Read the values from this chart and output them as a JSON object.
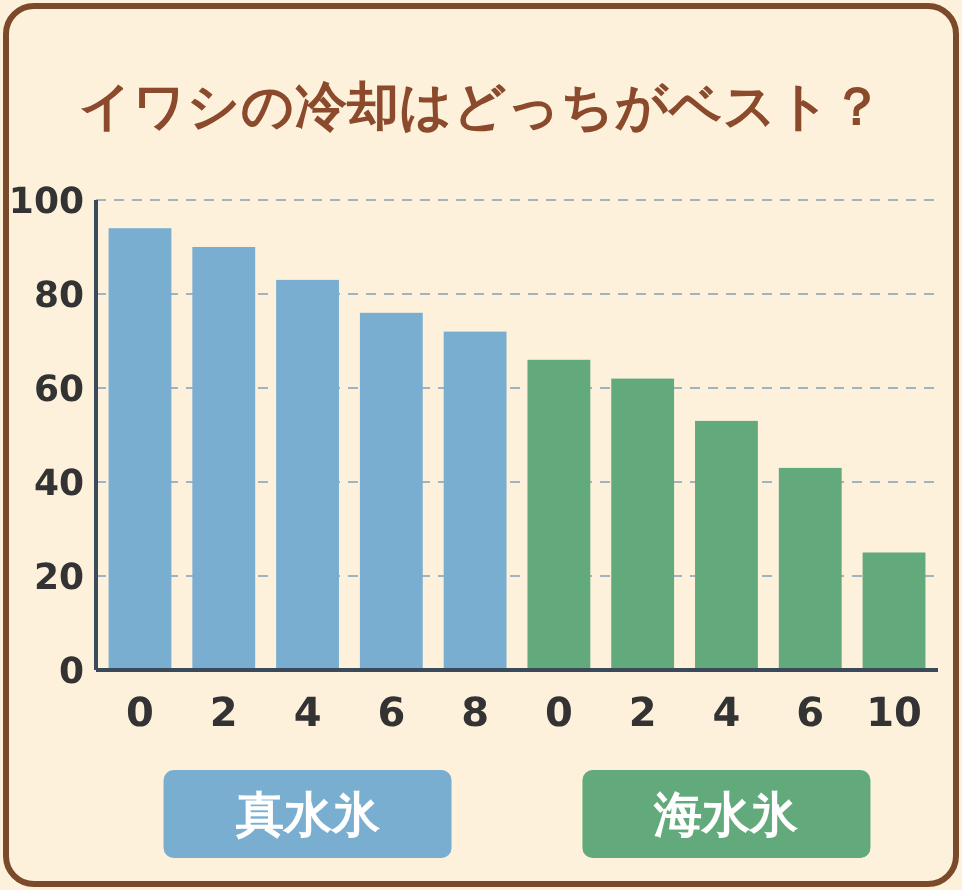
{
  "chart_data": {
    "type": "bar",
    "title": "イワシの冷却はどっちがベスト？",
    "categories": [
      "0",
      "2",
      "4",
      "6",
      "8",
      "0",
      "2",
      "4",
      "6",
      "10"
    ],
    "series": [
      {
        "name": "真水氷",
        "color": "#7aaed0",
        "values": [
          94,
          90,
          83,
          76,
          72,
          null,
          null,
          null,
          null,
          null
        ]
      },
      {
        "name": "海水氷",
        "color": "#62a97b",
        "values": [
          null,
          null,
          null,
          null,
          null,
          66,
          62,
          53,
          43,
          25
        ]
      }
    ],
    "ylim": [
      0,
      100
    ],
    "yticks": [
      0,
      20,
      40,
      60,
      80,
      100
    ],
    "grid": "y",
    "legend": "bottom"
  }
}
